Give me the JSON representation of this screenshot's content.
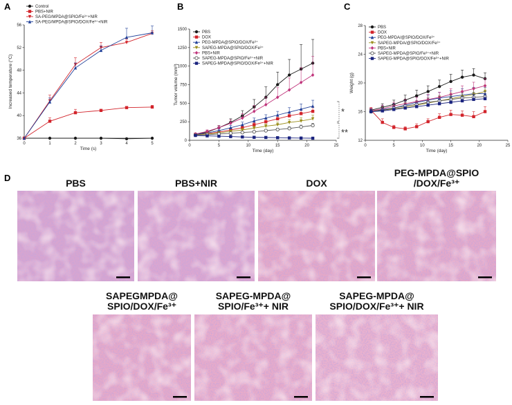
{
  "panels": {
    "a": "A",
    "b": "B",
    "c": "C",
    "d": "D"
  },
  "colors": {
    "black": "#1a1a1a",
    "red": "#d2232a",
    "blue": "#1f3f98",
    "magenta": "#c0357c",
    "olive": "#9b8e1c",
    "orange": "#d2691e",
    "grey": "#555555",
    "navy": "#1a237e",
    "he_base": "#e9a3c3",
    "he_dark": "#8a5fb0",
    "he_light": "#f3c7d9",
    "scale_bar": "#000000"
  },
  "chart_data": [
    {
      "id": "A",
      "type": "line",
      "xlabel": "Time (s)",
      "ylabel": "Increased temperature (°C)",
      "xlim": [
        0,
        5
      ],
      "ylim": [
        36,
        56
      ],
      "xticks": [
        0,
        1,
        2,
        3,
        4,
        5
      ],
      "yticks": [
        36,
        40,
        44,
        48,
        52,
        56
      ],
      "x": [
        0,
        1,
        2,
        3,
        4,
        5
      ],
      "series": [
        {
          "name": "Control",
          "color": "#1a1a1a",
          "marker": "circle",
          "values": [
            36.0,
            36.0,
            36.0,
            36.0,
            35.9,
            36.0
          ],
          "errors": [
            0,
            0,
            0,
            0,
            0,
            0
          ]
        },
        {
          "name": "PBS+NIR",
          "color": "#d2232a",
          "marker": "square",
          "values": [
            36.0,
            39.0,
            40.5,
            40.9,
            41.4,
            41.5
          ],
          "errors": [
            0,
            0.6,
            0.6,
            0.2,
            0.2,
            0.3
          ]
        },
        {
          "name": "SA-PEG/MPDA@SPIO/Fe3++NIR",
          "color": "#d2232a",
          "marker": "triangle-down",
          "values": [
            36.0,
            42.6,
            49.0,
            52.0,
            52.9,
            54.5
          ],
          "errors": [
            0,
            1.0,
            1.2,
            0.9,
            0.6,
            0.5
          ]
        },
        {
          "name": "SA-PEG/MPDA@SPIO/DOX/Fe3++NIR",
          "color": "#1f3f98",
          "marker": "triangle-up",
          "values": [
            36.0,
            42.4,
            48.4,
            51.5,
            53.8,
            54.6
          ],
          "errors": [
            0,
            0.7,
            0.9,
            0.8,
            1.6,
            1.2
          ]
        }
      ]
    },
    {
      "id": "B",
      "type": "line",
      "xlabel": "Time (day)",
      "ylabel": "Tumor volume (mm3)",
      "xlim": [
        0,
        25
      ],
      "ylim": [
        0,
        1500
      ],
      "xticks": [
        0,
        5,
        10,
        15,
        20,
        25
      ],
      "yticks": [
        0,
        250,
        500,
        750,
        1000,
        1250,
        1500
      ],
      "x": [
        1,
        3,
        5,
        7,
        9,
        11,
        13,
        15,
        17,
        19,
        21
      ],
      "annotations": [
        "*",
        "**"
      ],
      "series": [
        {
          "name": "PBS",
          "color": "#1a1a1a",
          "marker": "circle",
          "values": [
            80,
            110,
            170,
            240,
            330,
            450,
            580,
            750,
            880,
            960,
            1040
          ],
          "errors": [
            15,
            20,
            30,
            50,
            70,
            100,
            140,
            170,
            210,
            330,
            320
          ]
        },
        {
          "name": "DOX",
          "color": "#d2232a",
          "marker": "square",
          "values": [
            75,
            90,
            110,
            140,
            170,
            210,
            250,
            290,
            330,
            360,
            390
          ],
          "errors": [
            10,
            15,
            20,
            25,
            30,
            30,
            40,
            40,
            50,
            50,
            60
          ]
        },
        {
          "name": "PEG-MPDA@SPIO/DOX/Fe3+",
          "color": "#1f3f98",
          "marker": "triangle-up",
          "values": [
            80,
            100,
            130,
            170,
            210,
            260,
            300,
            340,
            380,
            420,
            460
          ],
          "errors": [
            10,
            15,
            20,
            30,
            35,
            40,
            45,
            50,
            60,
            70,
            80
          ]
        },
        {
          "name": "SAPEG-MPDA@SPIO/DOX/Fe3+",
          "color": "#9b8e1c",
          "marker": "triangle-down",
          "values": [
            75,
            85,
            100,
            120,
            140,
            165,
            190,
            210,
            240,
            260,
            290
          ],
          "errors": [
            10,
            12,
            15,
            18,
            20,
            25,
            30,
            35,
            40,
            45,
            50
          ]
        },
        {
          "name": "PBS+NIR",
          "color": "#c0357c",
          "marker": "diamond",
          "values": [
            85,
            120,
            170,
            230,
            300,
            390,
            480,
            580,
            680,
            780,
            880
          ],
          "errors": [
            15,
            20,
            30,
            45,
            60,
            80,
            100,
            130,
            160,
            200,
            250
          ]
        },
        {
          "name": "SAPEG-MPDA@SPIO/Fe3++NIR",
          "color": "#555555",
          "marker": "circle-open",
          "values": [
            70,
            75,
            85,
            95,
            105,
            115,
            130,
            145,
            160,
            180,
            200
          ],
          "errors": [
            8,
            10,
            10,
            12,
            14,
            15,
            18,
            20,
            22,
            25,
            30
          ]
        },
        {
          "name": "SAPEG-MPDA@SPIO/DOX/Fe3++NIR",
          "color": "#1a237e",
          "marker": "square",
          "values": [
            65,
            60,
            55,
            50,
            45,
            40,
            38,
            35,
            32,
            30,
            28
          ],
          "errors": [
            8,
            8,
            7,
            6,
            6,
            5,
            5,
            5,
            5,
            4,
            4
          ]
        }
      ]
    },
    {
      "id": "C",
      "type": "line",
      "xlabel": "Time (day)",
      "ylabel": "Weight (g)",
      "xlim": [
        0,
        25
      ],
      "ylim": [
        12,
        28
      ],
      "xticks": [
        0,
        5,
        10,
        15,
        20,
        25
      ],
      "yticks": [
        12,
        16,
        20,
        24,
        28
      ],
      "x": [
        1,
        3,
        5,
        7,
        9,
        11,
        13,
        15,
        17,
        19,
        21
      ],
      "series": [
        {
          "name": "PBS",
          "color": "#1a1a1a",
          "marker": "circle",
          "values": [
            16.2,
            16.6,
            17.0,
            17.6,
            18.2,
            18.8,
            19.5,
            20.2,
            20.8,
            21.1,
            20.6
          ],
          "errors": [
            0.3,
            0.5,
            0.6,
            0.7,
            0.8,
            0.8,
            0.9,
            1.0,
            1.0,
            0.9,
            0.8
          ]
        },
        {
          "name": "DOX",
          "color": "#d2232a",
          "marker": "square",
          "values": [
            16.2,
            14.5,
            13.8,
            13.6,
            13.9,
            14.6,
            15.2,
            15.6,
            15.5,
            15.3,
            16.0
          ],
          "errors": [
            0.4,
            0.5,
            0.3,
            0.3,
            0.4,
            0.4,
            0.5,
            0.6,
            0.6,
            0.7,
            0.7
          ]
        },
        {
          "name": "PEG-MPDA/@SPIO/DOX/Fe3+",
          "color": "#1f3f98",
          "marker": "triangle-up",
          "values": [
            16.0,
            16.3,
            16.5,
            16.9,
            17.3,
            17.6,
            17.9,
            18.1,
            18.3,
            18.5,
            18.5
          ],
          "errors": [
            0.4,
            0.5,
            0.6,
            0.6,
            0.7,
            0.7,
            0.8,
            0.8,
            0.9,
            0.9,
            0.9
          ]
        },
        {
          "name": "SAPEG-MPDA/@SPIO/DOX/Fe3+",
          "color": "#9b8e1c",
          "marker": "triangle-down",
          "values": [
            16.1,
            16.2,
            16.4,
            16.6,
            16.9,
            17.2,
            17.5,
            17.8,
            18.1,
            18.4,
            18.8
          ],
          "errors": [
            0.4,
            0.5,
            0.5,
            0.6,
            0.6,
            0.7,
            0.7,
            0.8,
            0.8,
            0.9,
            0.9
          ]
        },
        {
          "name": "PBS+NIR",
          "color": "#c0357c",
          "marker": "diamond",
          "values": [
            16.1,
            16.4,
            16.8,
            17.1,
            17.4,
            17.7,
            18.0,
            18.4,
            18.8,
            19.2,
            19.6
          ],
          "errors": [
            0.4,
            0.5,
            0.5,
            0.6,
            0.6,
            0.7,
            0.7,
            0.8,
            0.8,
            0.9,
            1.0
          ]
        },
        {
          "name": "SAPEG-MPDA@SPIO/Fe3++NIR",
          "color": "#555555",
          "marker": "circle-open",
          "values": [
            16.0,
            16.2,
            16.5,
            16.8,
            17.0,
            17.3,
            17.5,
            17.7,
            17.9,
            18.0,
            18.1
          ],
          "errors": [
            0.3,
            0.4,
            0.4,
            0.5,
            0.5,
            0.6,
            0.6,
            0.6,
            0.7,
            0.7,
            0.7
          ]
        },
        {
          "name": "SAPEG-MPDA@SPIO/DOX/Fe3++NIR",
          "color": "#1a237e",
          "marker": "square",
          "values": [
            16.0,
            16.1,
            16.3,
            16.5,
            16.7,
            16.9,
            17.1,
            17.3,
            17.5,
            17.7,
            17.8
          ],
          "errors": [
            0.3,
            0.4,
            0.4,
            0.5,
            0.5,
            0.5,
            0.6,
            0.6,
            0.6,
            0.7,
            0.7
          ]
        }
      ]
    }
  ],
  "histology": {
    "row1": [
      {
        "title_lines": [
          "PBS"
        ],
        "tint": "#d9a5cf"
      },
      {
        "title_lines": [
          "PBS+NIR"
        ],
        "tint": "#dda6cf"
      },
      {
        "title_lines": [
          "DOX"
        ],
        "tint": "#e7a8c6"
      },
      {
        "title_lines": [
          "PEG-MPDA@SPIO",
          "/DOX/Fe3+"
        ],
        "tint": "#e6a9c8"
      }
    ],
    "row2": [
      {
        "title_lines": [
          "SAPEGMPDA@",
          "SPIO/DOX/Fe3+"
        ],
        "tint": "#e8a9c7"
      },
      {
        "title_lines": [
          "SAPEG-MPDA@",
          "SPIO/Fe3++ NIR"
        ],
        "tint": "#eaabc8"
      },
      {
        "title_lines": [
          "SAPEG-MPDA@",
          "SPIO/DOX/Fe3++ NIR"
        ],
        "tint": "#ecb2cd"
      }
    ]
  }
}
